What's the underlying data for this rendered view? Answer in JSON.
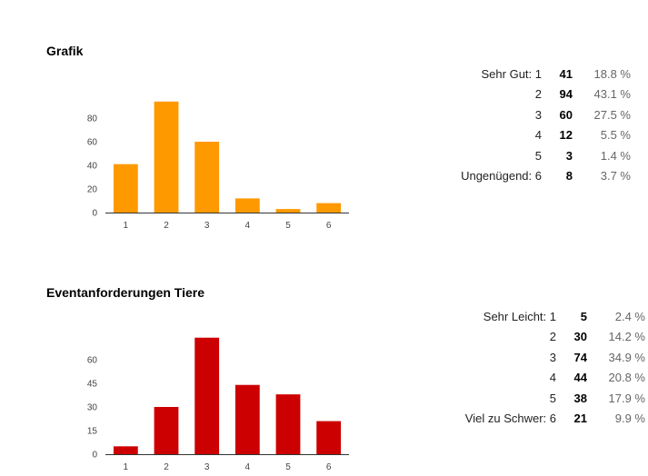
{
  "sections": [
    {
      "title": "Grafik",
      "color": "#ff9900",
      "rows": [
        {
          "label": "Sehr Gut: 1",
          "count": "41",
          "percent": "18.8 %"
        },
        {
          "label": "2",
          "count": "94",
          "percent": "43.1 %"
        },
        {
          "label": "3",
          "count": "60",
          "percent": "27.5 %"
        },
        {
          "label": "4",
          "count": "12",
          "percent": "5.5 %"
        },
        {
          "label": "5",
          "count": "3",
          "percent": "1.4 %"
        },
        {
          "label": "Ungenügend: 6",
          "count": "8",
          "percent": "3.7 %"
        }
      ]
    },
    {
      "title": "Eventanforderungen Tiere",
      "color": "#cc0000",
      "rows": [
        {
          "label": "Sehr Leicht: 1",
          "count": "5",
          "percent": "2.4 %"
        },
        {
          "label": "2",
          "count": "30",
          "percent": "14.2 %"
        },
        {
          "label": "3",
          "count": "74",
          "percent": "34.9 %"
        },
        {
          "label": "4",
          "count": "44",
          "percent": "20.8 %"
        },
        {
          "label": "5",
          "count": "38",
          "percent": "17.9 %"
        },
        {
          "label": "Viel zu Schwer: 6",
          "count": "21",
          "percent": "9.9 %"
        }
      ]
    }
  ],
  "chart_data": [
    {
      "type": "bar",
      "title": "Grafik",
      "categories": [
        "1",
        "2",
        "3",
        "4",
        "5",
        "6"
      ],
      "values": [
        41,
        94,
        60,
        12,
        3,
        8
      ],
      "yticks": [
        0,
        20,
        40,
        60,
        80
      ],
      "ylim": [
        0,
        100
      ],
      "color": "#ff9900",
      "grid": false,
      "legend": "none"
    },
    {
      "type": "bar",
      "title": "Eventanforderungen Tiere",
      "categories": [
        "1",
        "2",
        "3",
        "4",
        "5",
        "6"
      ],
      "values": [
        5,
        30,
        74,
        44,
        38,
        21
      ],
      "yticks": [
        0,
        15,
        30,
        45,
        60
      ],
      "ylim": [
        0,
        75
      ],
      "color": "#cc0000",
      "grid": false,
      "legend": "none"
    }
  ]
}
